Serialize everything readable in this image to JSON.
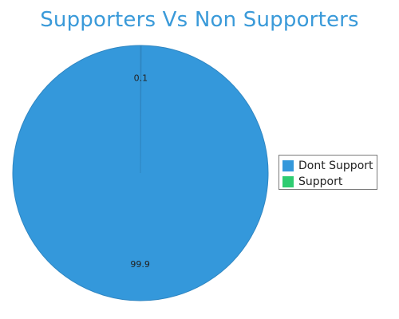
{
  "chart_data": {
    "type": "pie",
    "title": "Supporters Vs Non Supporters",
    "slices": [
      {
        "label": "Dont Support",
        "value": 99.9,
        "color": "#3498db",
        "data_label": "99.9"
      },
      {
        "label": "Support",
        "value": 0.1,
        "color": "#2ecc71",
        "data_label": "0.1"
      }
    ],
    "legend_position": "right"
  }
}
